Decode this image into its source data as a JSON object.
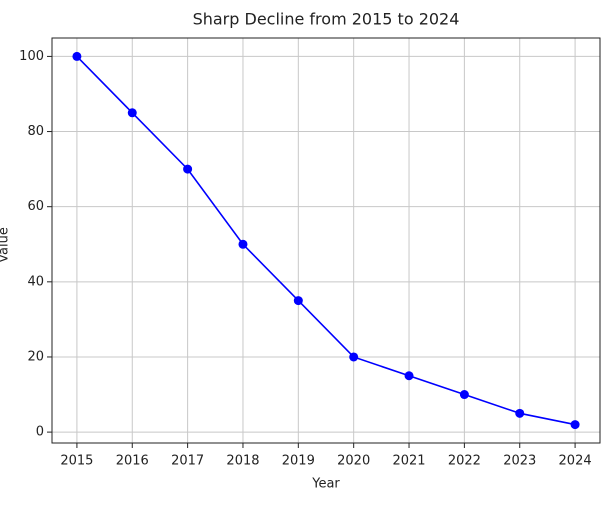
{
  "chart_data": {
    "type": "line",
    "title": "Sharp Decline from 2015 to 2024",
    "xlabel": "Year",
    "ylabel": "Value",
    "x": [
      2015,
      2016,
      2017,
      2018,
      2019,
      2020,
      2021,
      2022,
      2023,
      2024
    ],
    "series": [
      {
        "name": "Value",
        "color": "#0000ff",
        "values": [
          100,
          85,
          70,
          50,
          35,
          20,
          15,
          10,
          5,
          2
        ]
      }
    ],
    "xlim": [
      2014.55,
      2024.45
    ],
    "xticks": [
      2015,
      2016,
      2017,
      2018,
      2019,
      2020,
      2021,
      2022,
      2023,
      2024
    ],
    "ylim": [
      -2.9,
      104.9
    ],
    "yticks": [
      0,
      20,
      40,
      60,
      80,
      100
    ],
    "grid": true
  }
}
